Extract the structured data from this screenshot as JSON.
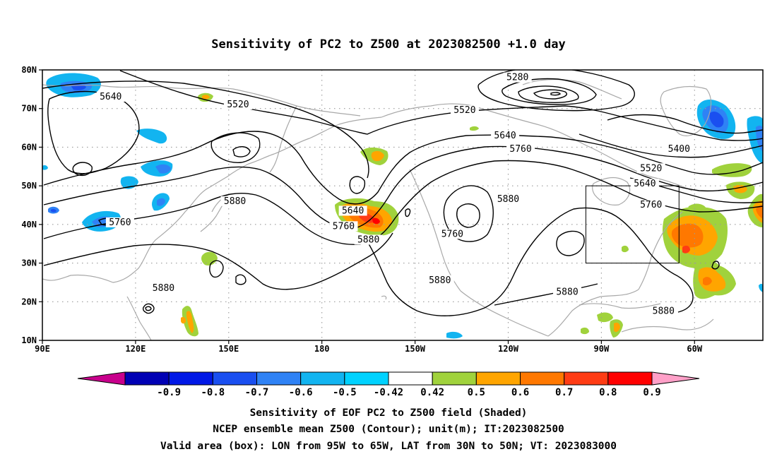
{
  "title": "Sensitivity of PC2 to Z500 at 2023082500 +1.0 day",
  "map": {
    "lat_ticks": [
      "80N",
      "70N",
      "60N",
      "50N",
      "40N",
      "30N",
      "20N",
      "10N"
    ],
    "lon_ticks": [
      "90E",
      "120E",
      "150E",
      "180",
      "150W",
      "120W",
      "90W",
      "60W"
    ],
    "lon_range_deg_east": [
      90,
      322
    ],
    "lat_range": [
      10,
      80
    ],
    "grid": "dotted",
    "coastline_color": "#a8a8a8",
    "contour_color": "#000000",
    "valid_box": {
      "lon": [
        -95,
        -65
      ],
      "lat": [
        30,
        50
      ]
    },
    "contour_labels": [
      {
        "text": "5640",
        "lon": 112,
        "lat": 72.5
      },
      {
        "text": "5520",
        "lon": 153,
        "lat": 70.5
      },
      {
        "text": "5280",
        "lon": 243,
        "lat": 77.5
      },
      {
        "text": "5520",
        "lon": 226,
        "lat": 69
      },
      {
        "text": "5640",
        "lon": 239,
        "lat": 62.5
      },
      {
        "text": "5760",
        "lon": 244,
        "lat": 59
      },
      {
        "text": "5400",
        "lon": 295,
        "lat": 59
      },
      {
        "text": "5520",
        "lon": 286,
        "lat": 54
      },
      {
        "text": "5640",
        "lon": 284,
        "lat": 50
      },
      {
        "text": "5760",
        "lon": 286,
        "lat": 44.5
      },
      {
        "text": "5880",
        "lon": 240,
        "lat": 46
      },
      {
        "text": "5880",
        "lon": 152,
        "lat": 45.5
      },
      {
        "text": "5640",
        "lon": 190,
        "lat": 43
      },
      {
        "text": "5760",
        "lon": 187,
        "lat": 39
      },
      {
        "text": "5880",
        "lon": 195,
        "lat": 35.5
      },
      {
        "text": "5760",
        "lon": 115,
        "lat": 40
      },
      {
        "text": "5760",
        "lon": 222,
        "lat": 37
      },
      {
        "text": "5880",
        "lon": 129,
        "lat": 23
      },
      {
        "text": "5880",
        "lon": 218,
        "lat": 25
      },
      {
        "text": "5880",
        "lon": 259,
        "lat": 22
      },
      {
        "text": "5880",
        "lon": 290,
        "lat": 17
      }
    ]
  },
  "colorbar": {
    "labels": [
      "-0.9",
      "-0.8",
      "-0.7",
      "-0.6",
      "-0.5",
      "-0.42",
      "0.42",
      "0.5",
      "0.6",
      "0.7",
      "0.8",
      "0.9"
    ],
    "colors": [
      "#c8008c",
      "#0000b4",
      "#0018e6",
      "#1a4ff0",
      "#2f82f5",
      "#12b4f0",
      "#00d2ff",
      "#ffffff",
      "#a0d23c",
      "#ffa500",
      "#ff7800",
      "#ff3c14",
      "#ff0000",
      "#ffa0c8"
    ]
  },
  "captions": [
    "Sensitivity of EOF PC2 to Z500 field (Shaded)",
    "NCEP ensemble mean Z500 (Contour); unit(m); IT:2023082500",
    "Valid area (box): LON from 95W to 65W, LAT from 30N to 50N; VT: 2023083000"
  ]
}
